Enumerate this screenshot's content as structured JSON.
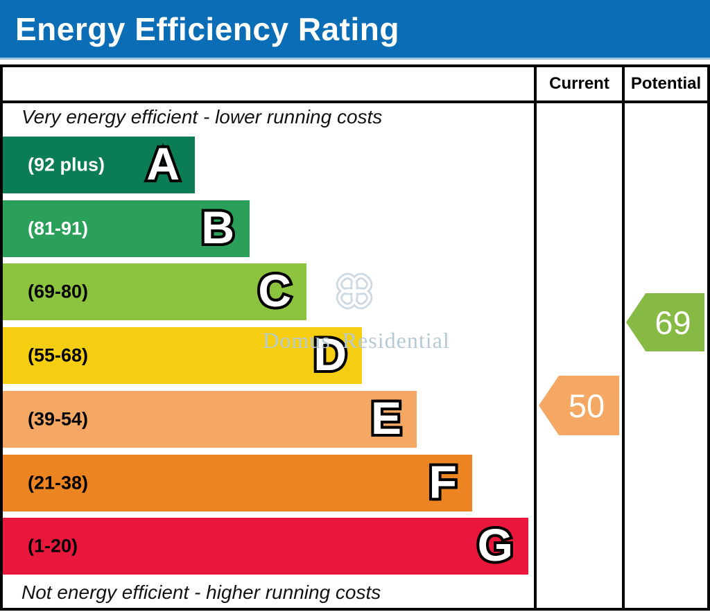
{
  "header": {
    "title": "Energy Efficiency Rating",
    "bg": "#0b6db5",
    "text_color": "#ffffff"
  },
  "table": {
    "columns": {
      "current": "Current",
      "potential": "Potential"
    }
  },
  "captions": {
    "top": "Very energy efficient - lower running costs",
    "bottom": "Not energy efficient - higher running costs"
  },
  "chart_data": {
    "type": "bar",
    "title": "Energy Efficiency Rating",
    "bands": [
      {
        "letter": "A",
        "range": "(92 plus)",
        "min": 92,
        "max": 100,
        "color": "#0b7d55",
        "label_color": "#ffffff"
      },
      {
        "letter": "B",
        "range": "(81-91)",
        "min": 81,
        "max": 91,
        "color": "#2ba05a",
        "label_color": "#ffffff"
      },
      {
        "letter": "C",
        "range": "(69-80)",
        "min": 69,
        "max": 80,
        "color": "#8cc43f",
        "label_color": "#000000"
      },
      {
        "letter": "D",
        "range": "(55-68)",
        "min": 55,
        "max": 68,
        "color": "#f5cd11",
        "label_color": "#000000"
      },
      {
        "letter": "E",
        "range": "(39-54)",
        "min": 39,
        "max": 54,
        "color": "#f4a863",
        "label_color": "#000000"
      },
      {
        "letter": "F",
        "range": "(21-38)",
        "min": 21,
        "max": 38,
        "color": "#eb8421",
        "label_color": "#000000"
      },
      {
        "letter": "G",
        "range": "(1-20)",
        "min": 1,
        "max": 20,
        "color": "#e8173b",
        "label_color": "#000000"
      }
    ],
    "current": {
      "value": 50,
      "band": "E",
      "color": "#f4a863"
    },
    "potential": {
      "value": 69,
      "band": "C",
      "color": "#87ba45"
    },
    "legend_position": "right-columns",
    "grid": false
  },
  "watermark": {
    "text": "Domus Residential",
    "text_color": "#b5cad4",
    "knot_color": "#ccd9e1"
  }
}
